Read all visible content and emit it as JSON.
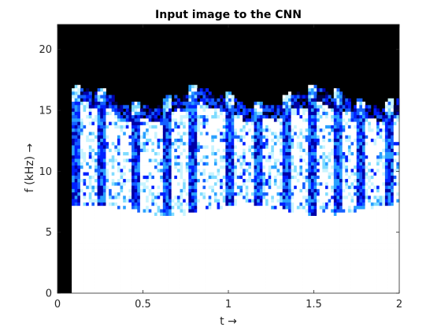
{
  "chart_data": {
    "type": "heatmap",
    "title": "Input image to the CNN",
    "xlabel": "t →",
    "ylabel": "f (kHz) →",
    "xlim": [
      0,
      2
    ],
    "ylim": [
      0,
      22.05
    ],
    "x_ticks": [
      0,
      0.5,
      1,
      1.5,
      2
    ],
    "x_tick_labels": [
      "0",
      "0.5",
      "1",
      "1.5",
      "2"
    ],
    "y_ticks": [
      0,
      5,
      10,
      15,
      20
    ],
    "y_tick_labels": [
      "0",
      "5",
      "10",
      "15",
      "20"
    ],
    "grid": false,
    "colormap": "inverted jet (white = high energy, blue = medium, black = no energy)",
    "background_color": "#000000",
    "regions": [
      {
        "description": "silence (no energy)",
        "t": [
          0,
          0.08
        ],
        "f": [
          0,
          22.05
        ],
        "level": "none"
      },
      {
        "description": "low-frequency broadband energy",
        "t": [
          0.08,
          2
        ],
        "f": [
          0,
          7
        ],
        "level": "high"
      },
      {
        "description": "mid-frequency textured energy",
        "t": [
          0.08,
          2
        ],
        "f": [
          7,
          16
        ],
        "level": "mixed"
      },
      {
        "description": "high-frequency silence",
        "t": [
          0.08,
          2
        ],
        "f": [
          16.5,
          22.05
        ],
        "level": "none"
      }
    ],
    "onsets_t": [
      0.09,
      0.24,
      0.44,
      0.62,
      0.78,
      0.99,
      1.16,
      1.32,
      1.48,
      1.62,
      1.76,
      1.92
    ]
  }
}
